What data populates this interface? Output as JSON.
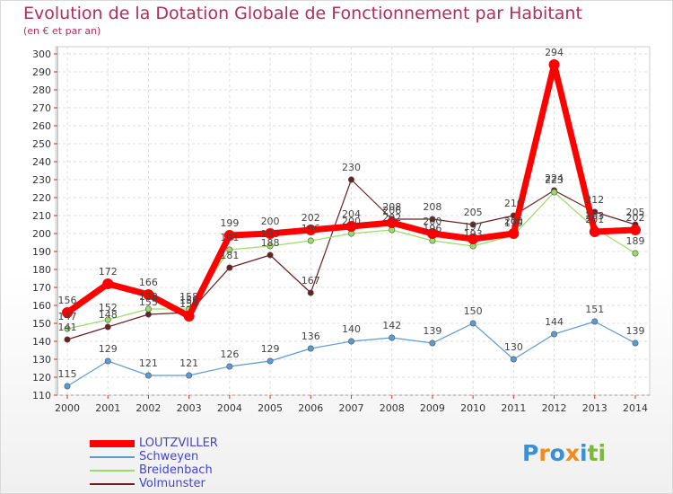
{
  "title": "Evolution de la Dotation Globale de Fonctionnement par Habitant",
  "subtitle": "(en € et par an)",
  "chart_data": {
    "type": "line",
    "categories": [
      "2000",
      "2001",
      "2002",
      "2003",
      "2004",
      "2005",
      "2006",
      "2007",
      "2008",
      "2009",
      "2010",
      "2011",
      "2012",
      "2013",
      "2014"
    ],
    "ylim": [
      110,
      300
    ],
    "yticks": [
      110,
      120,
      130,
      140,
      150,
      160,
      170,
      180,
      190,
      200,
      210,
      220,
      230,
      240,
      250,
      260,
      270,
      280,
      290,
      300
    ],
    "grid": true,
    "legend_position": "bottom-left",
    "series": [
      {
        "name": "LOUTZVILLER",
        "color": "#ff0000",
        "values": [
          156,
          172,
          166,
          154,
          199,
          200,
          202,
          204,
          206,
          200,
          197,
          200,
          294,
          201,
          202
        ],
        "labels": [
          "156",
          "172",
          "166",
          "154",
          "199",
          "200",
          "202",
          "204",
          "206",
          "200",
          "197",
          "200",
          "294",
          "201",
          "202"
        ]
      },
      {
        "name": "Schweyen",
        "color": "#5b9bd5",
        "values": [
          115,
          129,
          121,
          121,
          126,
          129,
          136,
          140,
          142,
          139,
          150,
          130,
          144,
          151,
          139
        ],
        "labels": [
          "115",
          "129",
          "121",
          "121",
          "126",
          "129",
          "136",
          "140",
          "142",
          "139",
          "150",
          "130",
          "144",
          "151",
          "139"
        ]
      },
      {
        "name": "Breidenbach",
        "color": "#99dd66",
        "values": [
          147,
          152,
          158,
          158,
          191,
          193,
          196,
          200,
          202,
          196,
          193,
          199,
          223,
          203,
          189
        ],
        "labels": [
          "147",
          "152",
          "158",
          "158",
          "191",
          "193",
          "196",
          "200",
          "202",
          "196",
          "193",
          "199",
          "223",
          "203",
          "189"
        ]
      },
      {
        "name": "Volmunster",
        "color": "#6b2020",
        "values": [
          141,
          148,
          155,
          156,
          181,
          188,
          167,
          230,
          208,
          208,
          205,
          210,
          224,
          212,
          205
        ],
        "labels": [
          "141",
          "148",
          "155",
          "156",
          "181",
          "188",
          "167",
          "230",
          "208",
          "208",
          "205",
          "210",
          "224",
          "212",
          "205"
        ]
      }
    ]
  },
  "logo": {
    "letters": [
      "P",
      "r",
      "o",
      "x",
      "i",
      "t",
      "i"
    ],
    "colors": [
      "#3a8fd6",
      "#f08c1e",
      "#3a8fd6",
      "#f08c1e",
      "#3a8fd6",
      "#7ab93a",
      "#7ab93a"
    ]
  }
}
